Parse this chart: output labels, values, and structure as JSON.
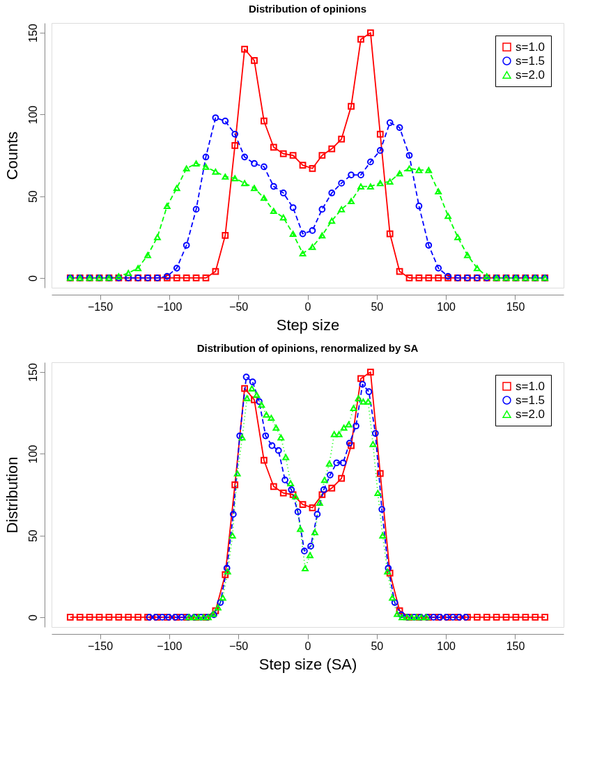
{
  "chart_data": [
    {
      "type": "line",
      "title": "Distribution of opinions",
      "xlabel": "Step size",
      "ylabel": "Counts",
      "xlim": [
        -185,
        185
      ],
      "ylim": [
        -6,
        156
      ],
      "xticks": [
        -150,
        -100,
        -50,
        0,
        50,
        100,
        150
      ],
      "yticks": [
        0,
        50,
        100,
        150
      ],
      "grid": false,
      "legend": "top right",
      "x": [
        -171.5,
        -164.5,
        -157.5,
        -150.5,
        -143.5,
        -136.5,
        -129.5,
        -122.5,
        -115.5,
        -108.5,
        -101.5,
        -94.5,
        -87.5,
        -80.5,
        -73.5,
        -66.5,
        -59.5,
        -52.5,
        -45.5,
        -38.5,
        -31.5,
        -24.5,
        -17.5,
        -10.5,
        -3.5,
        3.5,
        10.5,
        17.5,
        24.5,
        31.5,
        38.5,
        45.5,
        52.5,
        59.5,
        66.5,
        73.5,
        80.5,
        87.5,
        94.5,
        101.5,
        108.5,
        115.5,
        122.5,
        129.5,
        136.5,
        143.5,
        150.5,
        157.5,
        164.5,
        171.5
      ],
      "series": [
        {
          "name": "s=1.0",
          "color": "#ff0000",
          "marker": "square",
          "line_style": "solid",
          "values": [
            0,
            0,
            0,
            0,
            0,
            0,
            0,
            0,
            0,
            0,
            0,
            0,
            0,
            0,
            0,
            4,
            26,
            81,
            140,
            133,
            96,
            80,
            76,
            75,
            69,
            67,
            75,
            79,
            85,
            105,
            146,
            150,
            88,
            27,
            4,
            0,
            0,
            0,
            0,
            0,
            0,
            0,
            0,
            0,
            0,
            0,
            0,
            0,
            0,
            0
          ]
        },
        {
          "name": "s=1.5",
          "color": "#0000ff",
          "marker": "circle",
          "line_style": "dashed",
          "values": [
            0,
            0,
            0,
            0,
            0,
            0,
            0,
            0,
            0,
            0,
            1,
            6,
            20,
            42,
            74,
            98,
            96,
            88,
            74,
            70,
            68,
            56,
            52,
            43,
            27,
            29,
            42,
            52,
            58,
            63,
            63,
            71,
            78,
            95,
            92,
            75,
            44,
            20,
            6,
            1,
            0,
            0,
            0,
            0,
            0,
            0,
            0,
            0,
            0,
            0
          ]
        },
        {
          "name": "s=2.0",
          "color": "#00ff00",
          "marker": "triangle",
          "line_style": "dashed",
          "values": [
            0,
            0,
            0,
            0,
            0,
            1,
            3,
            6,
            14,
            25,
            44,
            55,
            67,
            70,
            68,
            65,
            62,
            61,
            58,
            55,
            49,
            41,
            37,
            27,
            15,
            19,
            26,
            35,
            42,
            47,
            56,
            56,
            58,
            59,
            64,
            67,
            66,
            66,
            53,
            38,
            25,
            14,
            6,
            1,
            0,
            0,
            0,
            0,
            0,
            0
          ]
        }
      ]
    },
    {
      "type": "line",
      "title": "Distribution of opinions, renormalized by SA",
      "xlabel": "Step size (SA)",
      "ylabel": "Distribution",
      "xlim": [
        -185,
        185
      ],
      "ylim": [
        -6,
        156
      ],
      "xticks": [
        -150,
        -100,
        -50,
        0,
        50,
        100,
        150
      ],
      "yticks": [
        0,
        50,
        100,
        150
      ],
      "grid": false,
      "legend": "top right",
      "series": [
        {
          "name": "s=1.0",
          "color": "#ff0000",
          "marker": "square",
          "line_style": "solid",
          "x": [
            -171.5,
            -164.5,
            -157.5,
            -150.5,
            -143.5,
            -136.5,
            -129.5,
            -122.5,
            -115.5,
            -108.5,
            -101.5,
            -94.5,
            -87.5,
            -80.5,
            -73.5,
            -66.5,
            -59.5,
            -52.5,
            -45.5,
            -38.5,
            -31.5,
            -24.5,
            -17.5,
            -10.5,
            -3.5,
            3.5,
            10.5,
            17.5,
            24.5,
            31.5,
            38.5,
            45.5,
            52.5,
            59.5,
            66.5,
            73.5,
            80.5,
            87.5,
            94.5,
            101.5,
            108.5,
            115.5,
            122.5,
            129.5,
            136.5,
            143.5,
            150.5,
            157.5,
            164.5,
            171.5
          ],
          "values": [
            0,
            0,
            0,
            0,
            0,
            0,
            0,
            0,
            0,
            0,
            0,
            0,
            0,
            0,
            0,
            4,
            26,
            81,
            140,
            133,
            96,
            80,
            76,
            75,
            69,
            67,
            75,
            79,
            85,
            105,
            146,
            150,
            88,
            27,
            4,
            0,
            0,
            0,
            0,
            0,
            0,
            0,
            0,
            0,
            0,
            0,
            0,
            0,
            0,
            0
          ]
        },
        {
          "name": "s=1.5",
          "color": "#0000ff",
          "marker": "circle",
          "line_style": "dashed",
          "x": [
            -114.3,
            -109.7,
            -105,
            -100.3,
            -95.7,
            -91,
            -86.3,
            -81.7,
            -77,
            -72.3,
            -67.7,
            -63,
            -58.3,
            -53.7,
            -49,
            -44.3,
            -39.7,
            -35,
            -30.3,
            -25.7,
            -21,
            -16.3,
            -11.7,
            -7,
            -2.3,
            2.3,
            7,
            11.7,
            16.3,
            21,
            25.7,
            30.3,
            35,
            39.7,
            44.3,
            49,
            53.7,
            58.3,
            63,
            67.7,
            72.3,
            77,
            81.7,
            86.3,
            91,
            95.7,
            100.3,
            105,
            109.7,
            114.3
          ],
          "values": [
            0,
            0,
            0,
            0,
            0,
            0,
            0,
            0,
            0,
            0,
            1.5,
            9,
            30,
            63,
            111,
            147,
            144,
            132,
            111,
            105,
            102,
            84,
            78,
            64.5,
            40.5,
            43.5,
            63,
            78,
            87,
            94.5,
            94.5,
            106.5,
            117,
            142.5,
            138,
            112.5,
            66,
            30,
            9,
            1.5,
            0,
            0,
            0,
            0,
            0,
            0,
            0,
            0,
            0,
            0
          ]
        },
        {
          "name": "s=2.0",
          "color": "#00ff00",
          "marker": "triangle",
          "line_style": "dotted",
          "x": [
            -85.75,
            -82.25,
            -78.75,
            -75.25,
            -71.75,
            -68.25,
            -64.75,
            -61.25,
            -57.75,
            -54.25,
            -50.75,
            -47.25,
            -43.75,
            -40.25,
            -36.75,
            -33.25,
            -29.75,
            -26.25,
            -22.75,
            -19.25,
            -15.75,
            -12.25,
            -8.75,
            -5.25,
            -1.75,
            1.75,
            5.25,
            8.75,
            12.25,
            15.75,
            19.25,
            22.75,
            26.25,
            29.75,
            33.25,
            36.75,
            40.25,
            43.75,
            47.25,
            50.75,
            54.25,
            57.75,
            61.25,
            64.75,
            68.25,
            71.75,
            75.25,
            78.75,
            82.25,
            85.75
          ],
          "values": [
            0,
            0,
            0,
            0,
            0,
            2,
            6,
            12,
            28,
            50,
            88,
            110,
            134,
            140,
            136,
            130,
            124,
            122,
            116,
            110,
            98,
            82,
            74,
            54,
            30,
            38,
            52,
            70,
            84,
            94,
            112,
            112,
            116,
            118,
            128,
            134,
            132,
            132,
            106,
            76,
            50,
            28,
            12,
            2,
            0,
            0,
            0,
            0,
            0,
            0
          ]
        }
      ]
    }
  ]
}
